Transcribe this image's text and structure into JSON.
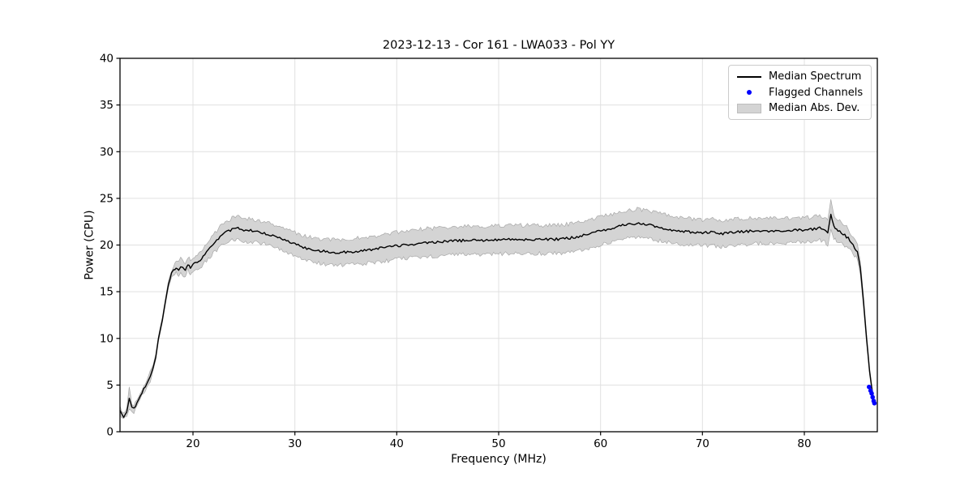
{
  "colors": {
    "median_line": "#000000",
    "flagged": "#0000ff",
    "band_fill": "#d4d4d4",
    "band_edge": "#a8a8a8",
    "grid": "#e0e0e0",
    "spine": "#000000",
    "legend_border": "#cccccc"
  },
  "chart_data": {
    "type": "line",
    "title": "2023-12-13 - Cor 161 - LWA033 - Pol YY",
    "xlabel": "Frequency (MHz)",
    "ylabel": "Power (CPU)",
    "xlim": [
      12.84,
      87.16
    ],
    "ylim": [
      0,
      40
    ],
    "x_ticks": [
      20,
      30,
      40,
      50,
      60,
      70,
      80
    ],
    "y_ticks": [
      0,
      5,
      10,
      15,
      20,
      25,
      30,
      35,
      40
    ],
    "grid": true,
    "legend_position": "upper right",
    "noise": {
      "seed": 42,
      "median_amp": 0.14,
      "band_amp": 0.22
    },
    "series": [
      {
        "name": "Median Spectrum",
        "type": "line",
        "color": "#000000",
        "comment": "points are [frequency_MHz, median_power_CPU, median_abs_dev]",
        "points": [
          [
            12.84,
            2.3,
            0.5
          ],
          [
            13.0,
            1.9,
            0.4
          ],
          [
            13.2,
            1.6,
            0.35
          ],
          [
            13.5,
            2.1,
            0.45
          ],
          [
            13.75,
            3.6,
            1.2
          ],
          [
            14.0,
            2.7,
            0.4
          ],
          [
            14.2,
            2.45,
            0.3
          ],
          [
            14.5,
            3.1,
            0.3
          ],
          [
            15.0,
            4.2,
            0.3
          ],
          [
            15.5,
            5.2,
            0.35
          ],
          [
            15.8,
            5.9,
            0.6
          ],
          [
            16.1,
            6.9,
            0.3
          ],
          [
            16.35,
            8.0,
            0.3
          ],
          [
            16.6,
            9.9,
            0.3
          ],
          [
            17.0,
            12.0,
            0.3
          ],
          [
            17.3,
            14.0,
            0.3
          ],
          [
            17.6,
            15.8,
            0.35
          ],
          [
            17.9,
            16.9,
            0.4
          ],
          [
            18.1,
            17.3,
            0.5
          ],
          [
            18.35,
            17.6,
            0.6
          ],
          [
            18.6,
            17.4,
            0.7
          ],
          [
            18.8,
            17.8,
            0.8
          ],
          [
            19.0,
            17.5,
            0.7
          ],
          [
            19.25,
            17.3,
            0.7
          ],
          [
            19.5,
            18.0,
            0.7
          ],
          [
            19.75,
            17.6,
            0.7
          ],
          [
            20.0,
            17.9,
            0.7
          ],
          [
            20.3,
            18.1,
            0.75
          ],
          [
            20.7,
            18.4,
            0.8
          ],
          [
            21.0,
            18.8,
            0.85
          ],
          [
            21.5,
            19.4,
            0.9
          ],
          [
            22.0,
            20.1,
            1.0
          ],
          [
            22.5,
            20.7,
            1.05
          ],
          [
            23.0,
            21.2,
            1.1
          ],
          [
            23.5,
            21.5,
            1.15
          ],
          [
            24.0,
            21.8,
            1.2
          ],
          [
            24.3,
            21.9,
            1.25
          ],
          [
            24.7,
            21.7,
            1.25
          ],
          [
            25.0,
            21.6,
            1.25
          ],
          [
            25.5,
            21.6,
            1.2
          ],
          [
            26.0,
            21.5,
            1.2
          ],
          [
            26.5,
            21.4,
            1.2
          ],
          [
            27.0,
            21.3,
            1.2
          ],
          [
            27.5,
            21.1,
            1.2
          ],
          [
            28.0,
            20.9,
            1.2
          ],
          [
            28.5,
            20.7,
            1.2
          ],
          [
            29.0,
            20.5,
            1.2
          ],
          [
            29.5,
            20.3,
            1.2
          ],
          [
            30.0,
            20.1,
            1.25
          ],
          [
            30.5,
            19.9,
            1.25
          ],
          [
            31.0,
            19.7,
            1.3
          ],
          [
            31.5,
            19.55,
            1.3
          ],
          [
            32.0,
            19.45,
            1.3
          ],
          [
            32.5,
            19.35,
            1.3
          ],
          [
            33.0,
            19.3,
            1.35
          ],
          [
            33.5,
            19.25,
            1.35
          ],
          [
            34.0,
            19.2,
            1.35
          ],
          [
            34.5,
            19.2,
            1.35
          ],
          [
            35.0,
            19.25,
            1.35
          ],
          [
            36.0,
            19.3,
            1.4
          ],
          [
            37.0,
            19.45,
            1.4
          ],
          [
            38.0,
            19.6,
            1.4
          ],
          [
            39.0,
            19.75,
            1.45
          ],
          [
            40.0,
            19.9,
            1.45
          ],
          [
            41.0,
            20.05,
            1.45
          ],
          [
            42.0,
            20.15,
            1.5
          ],
          [
            43.0,
            20.25,
            1.5
          ],
          [
            44.0,
            20.35,
            1.5
          ],
          [
            45.0,
            20.4,
            1.5
          ],
          [
            46.0,
            20.45,
            1.5
          ],
          [
            47.0,
            20.5,
            1.5
          ],
          [
            48.0,
            20.5,
            1.5
          ],
          [
            49.0,
            20.55,
            1.5
          ],
          [
            50.0,
            20.55,
            1.5
          ],
          [
            51.0,
            20.6,
            1.5
          ],
          [
            52.0,
            20.6,
            1.5
          ],
          [
            53.0,
            20.6,
            1.5
          ],
          [
            54.0,
            20.6,
            1.5
          ],
          [
            55.0,
            20.6,
            1.5
          ],
          [
            56.0,
            20.65,
            1.5
          ],
          [
            57.0,
            20.75,
            1.5
          ],
          [
            58.0,
            20.95,
            1.5
          ],
          [
            59.0,
            21.2,
            1.5
          ],
          [
            60.0,
            21.5,
            1.5
          ],
          [
            61.0,
            21.8,
            1.5
          ],
          [
            62.0,
            22.05,
            1.5
          ],
          [
            63.0,
            22.25,
            1.5
          ],
          [
            63.6,
            22.35,
            1.5
          ],
          [
            64.2,
            22.25,
            1.5
          ],
          [
            65.0,
            22.1,
            1.5
          ],
          [
            66.0,
            21.85,
            1.45
          ],
          [
            67.0,
            21.6,
            1.45
          ],
          [
            68.0,
            21.5,
            1.4
          ],
          [
            69.0,
            21.4,
            1.4
          ],
          [
            70.0,
            21.3,
            1.4
          ],
          [
            71.0,
            21.35,
            1.4
          ],
          [
            72.0,
            21.2,
            1.4
          ],
          [
            73.0,
            21.35,
            1.4
          ],
          [
            74.0,
            21.45,
            1.4
          ],
          [
            75.0,
            21.5,
            1.4
          ],
          [
            76.0,
            21.55,
            1.35
          ],
          [
            77.0,
            21.5,
            1.35
          ],
          [
            78.0,
            21.55,
            1.35
          ],
          [
            79.0,
            21.6,
            1.3
          ],
          [
            80.0,
            21.6,
            1.3
          ],
          [
            80.8,
            21.7,
            1.3
          ],
          [
            81.5,
            21.85,
            1.3
          ],
          [
            82.0,
            21.6,
            1.3
          ],
          [
            82.3,
            21.3,
            1.4
          ],
          [
            82.6,
            23.3,
            1.6
          ],
          [
            82.9,
            21.9,
            1.3
          ],
          [
            83.3,
            21.6,
            1.2
          ],
          [
            83.8,
            21.2,
            1.1
          ],
          [
            84.3,
            20.7,
            1.0
          ],
          [
            84.8,
            19.9,
            0.9
          ],
          [
            85.2,
            19.3,
            0.8
          ],
          [
            85.5,
            17.5,
            0.7
          ],
          [
            85.8,
            14.0,
            0.6
          ],
          [
            86.1,
            10.0,
            0.5
          ],
          [
            86.4,
            6.5,
            0.4
          ],
          [
            86.6,
            4.8,
            0.3
          ],
          [
            86.85,
            3.1,
            0.25
          ]
        ]
      },
      {
        "name": "Flagged Channels",
        "type": "scatter",
        "color": "#0000ff",
        "points": [
          [
            86.35,
            4.8
          ],
          [
            86.5,
            4.4
          ],
          [
            86.6,
            4.1
          ],
          [
            86.7,
            3.7
          ],
          [
            86.8,
            3.3
          ],
          [
            86.87,
            3.05
          ]
        ]
      },
      {
        "name": "Median Abs. Dev.",
        "type": "band",
        "color": "#d4d4d4",
        "derived_from": "mad column of Median Spectrum points (median ± mad)"
      }
    ]
  }
}
